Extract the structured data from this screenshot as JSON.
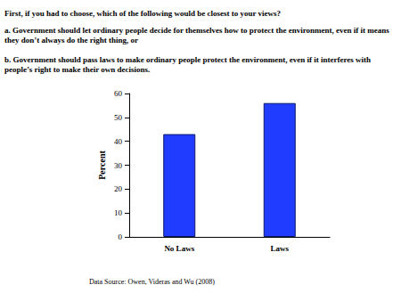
{
  "chart_data": {
    "type": "bar",
    "title": "First, if you had to choose, which of the following would be closest to your views?",
    "subtitle": [
      "a. Government should let ordinary people decide for themselves how to protect the environment, even if it means they don’t always do the right thing, or",
      "b. Government should pass laws to make ordinary people protect the environment, even if it interferes with people’s right to make their own decisions."
    ],
    "y_label": "Percent",
    "categories": [
      "No Laws",
      "Laws"
    ],
    "values": [
      43,
      56
    ],
    "color": "#1f3cff",
    "ylim": [
      0,
      60
    ],
    "yticks": [
      0,
      10,
      20,
      30,
      40,
      50,
      60
    ],
    "grid": false,
    "annotations": [
      "Data Source: Owen, Videras and Wu (2008)"
    ]
  }
}
